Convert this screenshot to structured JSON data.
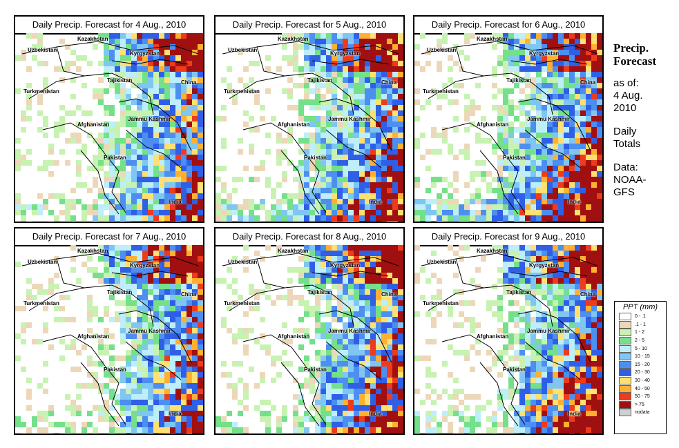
{
  "panels": [
    {
      "title": "Daily Precip. Forecast for  4 Aug., 2010"
    },
    {
      "title": "Daily Precip. Forecast for  5 Aug., 2010"
    },
    {
      "title": "Daily Precip. Forecast for  6 Aug., 2010"
    },
    {
      "title": "Daily Precip. Forecast for  7 Aug., 2010"
    },
    {
      "title": "Daily Precip. Forecast for  8 Aug., 2010"
    },
    {
      "title": "Daily Precip. Forecast for  9 Aug., 2010"
    }
  ],
  "map_labels": {
    "uzbekistan": "Uzbekistan",
    "kazakhstan": "Kazakhstan",
    "kyrgyzstan": "Kyrgyzstan",
    "tajikistan": "Tajikistan",
    "turkmenistan": "Turkmenistan",
    "china": "China",
    "afghanistan": "Afghanistan",
    "jammu_kashmir": "Jammu Kashmir",
    "pakistan": "Pakistan",
    "india": "India"
  },
  "side": {
    "heading1": "Precip.",
    "heading2": "Forecast",
    "as_of1": "as of:",
    "as_of2": "4 Aug.",
    "as_of3": "2010",
    "totals1": "Daily",
    "totals2": "Totals",
    "data1": "Data:",
    "data2": "NOAA-",
    "data3": "GFS"
  },
  "legend": {
    "title": "PPT (mm)",
    "items": [
      {
        "label": "0 - .1",
        "color": "#ffffff"
      },
      {
        "label": ".1 - 1",
        "color": "#ecd8b8"
      },
      {
        "label": "1 - 2",
        "color": "#c8f2b2"
      },
      {
        "label": "2 - 5",
        "color": "#74e08a"
      },
      {
        "label": "5 - 10",
        "color": "#bdeefa"
      },
      {
        "label": "10 - 15",
        "color": "#7fc6f2"
      },
      {
        "label": "15 - 20",
        "color": "#4c8ff0"
      },
      {
        "label": "20 - 30",
        "color": "#2f5fe6"
      },
      {
        "label": "30 - 40",
        "color": "#ffe070"
      },
      {
        "label": "40 - 50",
        "color": "#ffb030"
      },
      {
        "label": "50 - 75",
        "color": "#ee3b1c"
      },
      {
        "label": "> 75",
        "color": "#a01010"
      },
      {
        "label": "nodata",
        "color": "#cfcfcf"
      }
    ]
  }
}
